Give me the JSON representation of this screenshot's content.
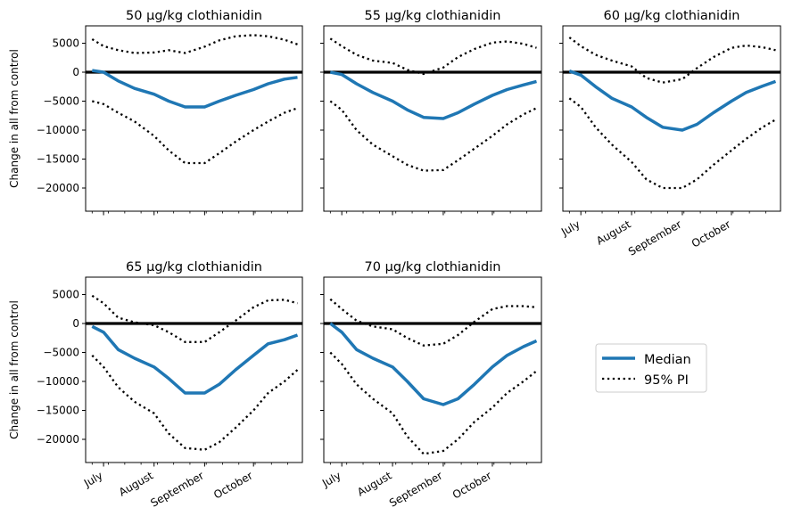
{
  "chart_data": {
    "type": "line",
    "x_axis": {
      "month_labels": [
        "July",
        "August",
        "September",
        "October"
      ],
      "month_starts": [
        "2021-07-01",
        "2021-08-01",
        "2021-09-01",
        "2021-10-01"
      ],
      "range": [
        "2021-06-20",
        "2021-10-31"
      ]
    },
    "y_axis": {
      "label": "Change in all from control",
      "ylim": [
        -24000,
        8000
      ],
      "ticks": [
        5000,
        0,
        -5000,
        -10000,
        -15000,
        -20000
      ]
    },
    "legend": {
      "placement": "lower-right empty cell",
      "entries": [
        {
          "label": "Median",
          "style": "solid",
          "color": "#1f77b4"
        },
        {
          "label": "95% PI",
          "style": "dotted",
          "color": "#000000"
        }
      ]
    },
    "colors": {
      "median": "#1f77b4",
      "pi": "#000000",
      "zero_line": "#000000"
    },
    "panels": [
      {
        "title": "50 µg/kg clothianidin",
        "dates": [
          "2021-06-24",
          "2021-07-01",
          "2021-07-10",
          "2021-07-20",
          "2021-08-01",
          "2021-08-10",
          "2021-08-20",
          "2021-09-01",
          "2021-09-10",
          "2021-09-20",
          "2021-10-01",
          "2021-10-10",
          "2021-10-20",
          "2021-10-28"
        ],
        "median": [
          300,
          0,
          -1500,
          -2800,
          -3800,
          -5000,
          -6000,
          -6000,
          -5000,
          -4000,
          -3000,
          -2000,
          -1200,
          -900
        ],
        "pi_upper": [
          5700,
          4500,
          3800,
          3300,
          3400,
          3800,
          3300,
          4400,
          5500,
          6200,
          6400,
          6200,
          5600,
          4800
        ],
        "pi_lower": [
          -5000,
          -5500,
          -7000,
          -8500,
          -11000,
          -13500,
          -15700,
          -15700,
          -14000,
          -12000,
          -10000,
          -8500,
          -7000,
          -6200
        ]
      },
      {
        "title": "55 µg/kg clothianidin",
        "dates": [
          "2021-06-24",
          "2021-07-01",
          "2021-07-10",
          "2021-07-20",
          "2021-08-01",
          "2021-08-10",
          "2021-08-20",
          "2021-09-01",
          "2021-09-10",
          "2021-09-20",
          "2021-10-01",
          "2021-10-10",
          "2021-10-20",
          "2021-10-28"
        ],
        "median": [
          0,
          -400,
          -2000,
          -3500,
          -5000,
          -6500,
          -7800,
          -8000,
          -7000,
          -5500,
          -4000,
          -3000,
          -2200,
          -1600
        ],
        "pi_upper": [
          5800,
          4500,
          3000,
          2000,
          1600,
          400,
          -300,
          800,
          2600,
          4000,
          5100,
          5300,
          4900,
          4200
        ],
        "pi_lower": [
          -5000,
          -6500,
          -10000,
          -12500,
          -14500,
          -16000,
          -17000,
          -16900,
          -15200,
          -13200,
          -11000,
          -9000,
          -7300,
          -6200
        ]
      },
      {
        "title": "60 µg/kg clothianidin",
        "dates": [
          "2021-06-24",
          "2021-07-01",
          "2021-07-10",
          "2021-07-20",
          "2021-08-01",
          "2021-08-10",
          "2021-08-20",
          "2021-09-01",
          "2021-09-10",
          "2021-09-20",
          "2021-10-01",
          "2021-10-10",
          "2021-10-20",
          "2021-10-28"
        ],
        "median": [
          200,
          -500,
          -2500,
          -4500,
          -6000,
          -7800,
          -9500,
          -10000,
          -9000,
          -7000,
          -5000,
          -3500,
          -2400,
          -1600
        ],
        "pi_upper": [
          6000,
          4500,
          3000,
          2000,
          1000,
          -1000,
          -1800,
          -1200,
          700,
          2600,
          4200,
          4600,
          4300,
          3800
        ],
        "pi_lower": [
          -4500,
          -6000,
          -9500,
          -12500,
          -15500,
          -18500,
          -20000,
          -20000,
          -18500,
          -16000,
          -13500,
          -11500,
          -9500,
          -8200
        ]
      },
      {
        "title": "65 µg/kg clothianidin",
        "dates": [
          "2021-06-24",
          "2021-07-01",
          "2021-07-10",
          "2021-07-20",
          "2021-08-01",
          "2021-08-10",
          "2021-08-20",
          "2021-09-01",
          "2021-09-10",
          "2021-09-20",
          "2021-10-01",
          "2021-10-10",
          "2021-10-20",
          "2021-10-28"
        ],
        "median": [
          -500,
          -1500,
          -4500,
          -6000,
          -7500,
          -9500,
          -12000,
          -12000,
          -10500,
          -8000,
          -5500,
          -3500,
          -2800,
          -2000
        ],
        "pi_upper": [
          4800,
          3500,
          1000,
          200,
          -300,
          -1500,
          -3200,
          -3200,
          -1500,
          500,
          2800,
          4000,
          4100,
          3500
        ],
        "pi_lower": [
          -5500,
          -7500,
          -11000,
          -13500,
          -15500,
          -19000,
          -21500,
          -21800,
          -20500,
          -18000,
          -15000,
          -12000,
          -10000,
          -8000
        ]
      },
      {
        "title": "70 µg/kg clothianidin",
        "dates": [
          "2021-06-24",
          "2021-07-01",
          "2021-07-10",
          "2021-07-20",
          "2021-08-01",
          "2021-08-10",
          "2021-08-20",
          "2021-09-01",
          "2021-09-10",
          "2021-09-20",
          "2021-10-01",
          "2021-10-10",
          "2021-10-20",
          "2021-10-28"
        ],
        "median": [
          0,
          -1500,
          -4500,
          -6000,
          -7500,
          -10000,
          -13000,
          -14000,
          -13000,
          -10500,
          -7500,
          -5500,
          -4000,
          -3000
        ],
        "pi_upper": [
          4200,
          2500,
          500,
          -500,
          -1000,
          -2500,
          -3800,
          -3500,
          -2000,
          300,
          2500,
          3000,
          3000,
          2800
        ],
        "pi_lower": [
          -5000,
          -7000,
          -10500,
          -13000,
          -15500,
          -19500,
          -22500,
          -22000,
          -20000,
          -17000,
          -14500,
          -12000,
          -10000,
          -8200
        ]
      }
    ]
  }
}
